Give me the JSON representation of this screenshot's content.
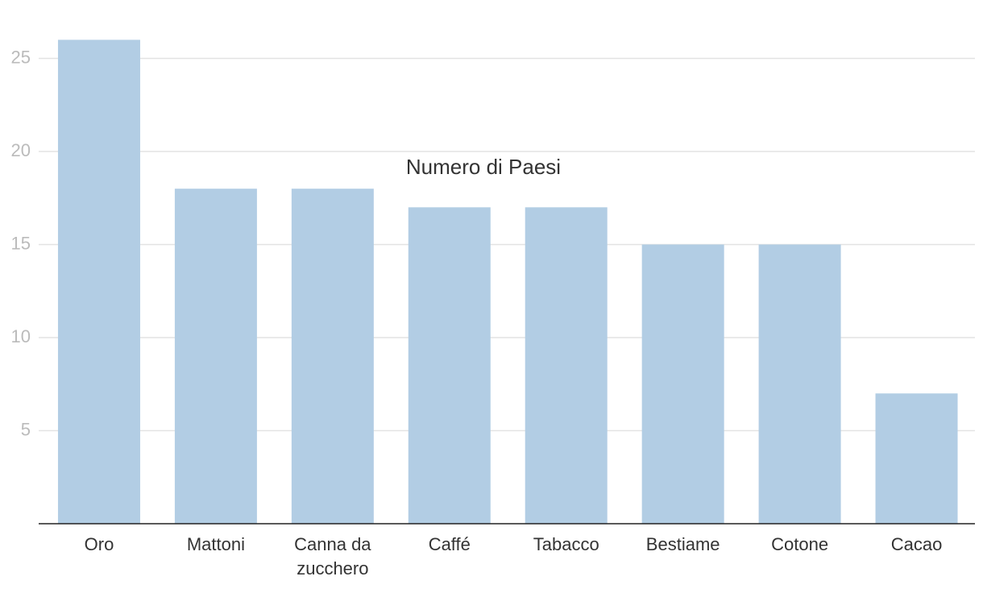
{
  "chart_data": {
    "type": "bar",
    "title": "Numero di Paesi",
    "categories": [
      "Oro",
      "Mattoni",
      "Canna da zucchero",
      "Caffé",
      "Tabacco",
      "Bestiame",
      "Cotone",
      "Cacao"
    ],
    "values": [
      26,
      18,
      18,
      17,
      17,
      15,
      15,
      7
    ],
    "color": "#b2cde4",
    "ylim": [
      0,
      26
    ],
    "yticks": [
      5,
      10,
      15,
      20,
      25
    ],
    "grid": true
  }
}
